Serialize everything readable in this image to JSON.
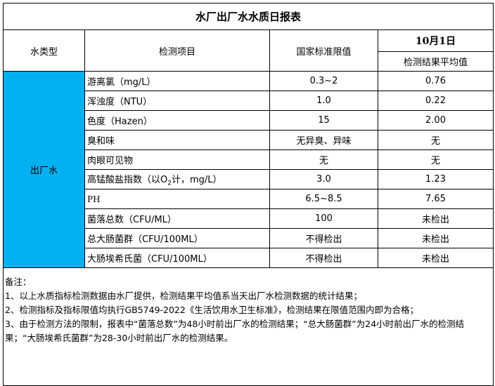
{
  "title": "水厂出厂水水质日报表",
  "header": {
    "water_type": "水类型",
    "item": "检测项目",
    "standard": "国家标准限值",
    "date": "10月1日",
    "result": "检测结果平均值"
  },
  "water_type_value": "出厂水",
  "rows": [
    {
      "item": "游离氯（mg/L）",
      "standard": "0.3~2",
      "result": "0.76"
    },
    {
      "item": "浑浊度（NTU）",
      "standard": "1.0",
      "result": "0.22"
    },
    {
      "item": "色度（Hazen）",
      "standard": "15",
      "result": "2.00"
    },
    {
      "item": "臭和味",
      "standard": "无异臭、异味",
      "result": "无"
    },
    {
      "item": "肉眼可见物",
      "standard": "无",
      "result": "无"
    },
    {
      "item_prefix": "高锰酸盐指数（以O",
      "item_sub": "2",
      "item_suffix": "计，mg/L）",
      "standard": "3.0",
      "result": "1.23"
    },
    {
      "item": "PH",
      "standard": "6.5~8.5",
      "result": "7.65"
    },
    {
      "item": "菌落总数（CFU/ML）",
      "standard": "100",
      "result": "未检出"
    },
    {
      "item": "总大肠菌群（CFU/100ML）",
      "standard": "不得检出",
      "result": "未检出"
    },
    {
      "item": "大肠埃希氏菌（CFU/100ML）",
      "standard": "不得检出",
      "result": "未检出"
    }
  ],
  "notes": [
    "备注：",
    "1、以上水质指标检测数据由水厂提供，检测结果平均值系当天出厂水检测数据的统计结果；",
    "2、检测指标及指标限值均执行GB5749-2022《生活饮用水卫生标准》，检测结果在限值范围内即为合格；",
    "3、由于检测方法的限制，报表中“菌落总数”为48小时前出厂水的检测结果；“总大肠菌群”为24小时前出厂水的检测结果；“大肠埃希氏菌群”为28-30小时前出厂水的检测结果。"
  ],
  "colors": {
    "water_type_cell": "#00b0f0"
  }
}
